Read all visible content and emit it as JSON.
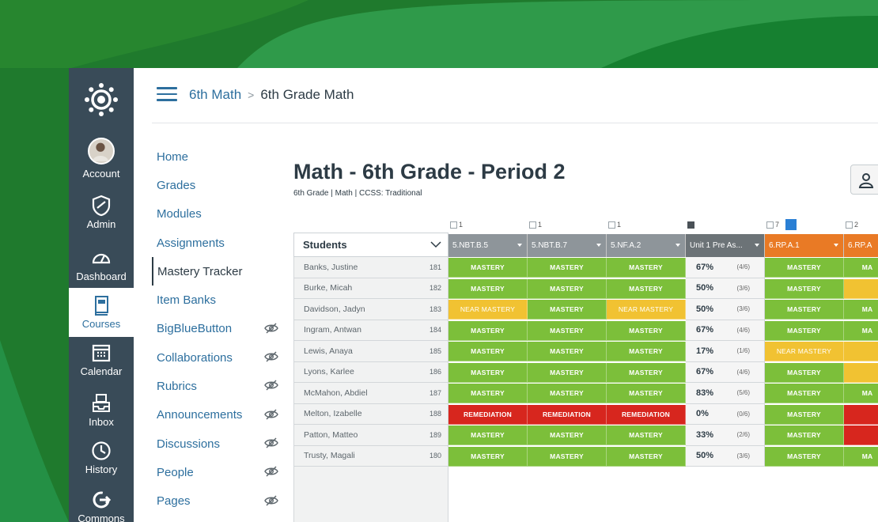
{
  "colors": {
    "bg_green": "#2c8a3a",
    "nav_bg": "#394b58",
    "link_blue": "#2d6f9e",
    "mastery": "#7cbf3a",
    "near_mastery": "#f1c232",
    "remediation": "#d7261e",
    "header_gray": "#8e959a",
    "header_orange": "#e97a25"
  },
  "global_nav": {
    "items": [
      {
        "label": "Account",
        "icon": "avatar"
      },
      {
        "label": "Admin",
        "icon": "shield-icon"
      },
      {
        "label": "Dashboard",
        "icon": "speedometer-icon"
      },
      {
        "label": "Courses",
        "icon": "book-icon",
        "active": true
      },
      {
        "label": "Calendar",
        "icon": "calendar-icon"
      },
      {
        "label": "Inbox",
        "icon": "inbox-icon"
      },
      {
        "label": "History",
        "icon": "clock-icon"
      },
      {
        "label": "Commons",
        "icon": "commons-icon"
      }
    ]
  },
  "breadcrumb": {
    "course": "6th Math",
    "separator": ">",
    "current": "6th Grade Math"
  },
  "course_nav": [
    {
      "label": "Home"
    },
    {
      "label": "Grades"
    },
    {
      "label": "Modules"
    },
    {
      "label": "Assignments"
    },
    {
      "label": "Mastery Tracker",
      "active": true
    },
    {
      "label": "Item Banks"
    },
    {
      "label": "BigBlueButton",
      "hidden": true
    },
    {
      "label": "Collaborations",
      "hidden": true
    },
    {
      "label": "Rubrics",
      "hidden": true
    },
    {
      "label": "Announcements",
      "hidden": true
    },
    {
      "label": "Discussions",
      "hidden": true
    },
    {
      "label": "People",
      "hidden": true
    },
    {
      "label": "Pages",
      "hidden": true
    }
  ],
  "page": {
    "title": "Math - 6th Grade - Period 2",
    "subtitle": "6th Grade | Math | CCSS: Traditional"
  },
  "tracker": {
    "students_header": "Students",
    "columns": [
      {
        "label": "5.NBT.B.5",
        "count": "1",
        "style": "gray"
      },
      {
        "label": "5.NBT.B.7",
        "count": "1",
        "style": "gray"
      },
      {
        "label": "5.NF.A.2",
        "count": "1",
        "style": "gray"
      },
      {
        "label": "Unit 1 Pre As...",
        "count": "",
        "style": "dark"
      },
      {
        "label": "6.RP.A.1",
        "count": "7",
        "style": "orange"
      },
      {
        "label": "6.RP.A",
        "count": "2",
        "style": "orange"
      }
    ],
    "levels": {
      "M": "MASTERY",
      "N": "NEAR MASTERY",
      "R": "REMEDIATION",
      "MA": "MA"
    },
    "rows": [
      {
        "name": "Banks, Justine",
        "id": "181",
        "cells": [
          "M",
          "M",
          "M"
        ],
        "pct": "67%",
        "frac": "(4/6)",
        "rp": [
          "M",
          "M"
        ]
      },
      {
        "name": "Burke, Micah",
        "id": "182",
        "cells": [
          "M",
          "M",
          "M"
        ],
        "pct": "50%",
        "frac": "(3/6)",
        "rp": [
          "M",
          "N"
        ]
      },
      {
        "name": "Davidson, Jadyn",
        "id": "183",
        "cells": [
          "N",
          "M",
          "N"
        ],
        "pct": "50%",
        "frac": "(3/6)",
        "rp": [
          "M",
          "M"
        ]
      },
      {
        "name": "Ingram, Antwan",
        "id": "184",
        "cells": [
          "M",
          "M",
          "M"
        ],
        "pct": "67%",
        "frac": "(4/6)",
        "rp": [
          "M",
          "M"
        ]
      },
      {
        "name": "Lewis, Anaya",
        "id": "185",
        "cells": [
          "M",
          "M",
          "M"
        ],
        "pct": "17%",
        "frac": "(1/6)",
        "rp": [
          "N",
          "N"
        ]
      },
      {
        "name": "Lyons, Karlee",
        "id": "186",
        "cells": [
          "M",
          "M",
          "M"
        ],
        "pct": "67%",
        "frac": "(4/6)",
        "rp": [
          "M",
          "N"
        ]
      },
      {
        "name": "McMahon, Abdiel",
        "id": "187",
        "cells": [
          "M",
          "M",
          "M"
        ],
        "pct": "83%",
        "frac": "(5/6)",
        "rp": [
          "M",
          "M"
        ]
      },
      {
        "name": "Melton, Izabelle",
        "id": "188",
        "cells": [
          "R",
          "R",
          "R"
        ],
        "pct": "0%",
        "frac": "(0/6)",
        "rp": [
          "M",
          "R"
        ]
      },
      {
        "name": "Patton, Matteo",
        "id": "189",
        "cells": [
          "M",
          "M",
          "M"
        ],
        "pct": "33%",
        "frac": "(2/6)",
        "rp": [
          "M",
          "R"
        ]
      },
      {
        "name": "Trusty, Magali",
        "id": "180",
        "cells": [
          "M",
          "M",
          "M"
        ],
        "pct": "50%",
        "frac": "(3/6)",
        "rp": [
          "M",
          "M"
        ]
      }
    ]
  }
}
